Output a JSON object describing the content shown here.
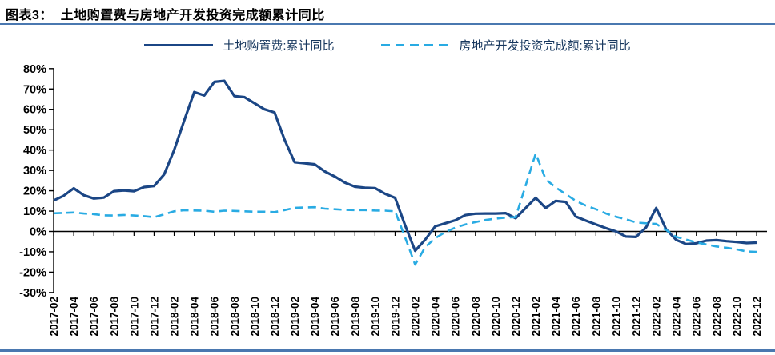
{
  "page": {
    "title": "图表3：  土地购置费与房地产开发投资完成额累计同比",
    "title_rule_color": "#4a78b0",
    "bottom_rule_color": "#4a78b0",
    "background": "#ffffff",
    "axis_color": "#000000"
  },
  "legend": [
    {
      "label": "土地购置费:累计同比",
      "color": "#1b4685",
      "style": "solid"
    },
    {
      "label": "房地产开发投资完成额:累计同比",
      "color": "#29abe3",
      "style": "dashed"
    }
  ],
  "chart_data": {
    "type": "line",
    "title": "土地购置费与房地产开发投资完成额累计同比",
    "xlabel": "",
    "ylabel": "",
    "grid": false,
    "legend_position": "top",
    "ylim": [
      -30,
      80
    ],
    "y_ticks": {
      "values": [
        80,
        70,
        60,
        50,
        40,
        30,
        20,
        10,
        0,
        -10,
        -20,
        -30
      ],
      "labels": [
        "80%",
        "70%",
        "60%",
        "50%",
        "40%",
        "30%",
        "20%",
        "10%",
        "0%",
        "-10%",
        "-20%",
        "-30%"
      ]
    },
    "x": [
      "2017-02",
      "2017-03",
      "2017-04",
      "2017-05",
      "2017-06",
      "2017-07",
      "2017-08",
      "2017-09",
      "2017-10",
      "2017-11",
      "2017-12",
      "2018-01",
      "2018-02",
      "2018-03",
      "2018-04",
      "2018-05",
      "2018-06",
      "2018-07",
      "2018-08",
      "2018-09",
      "2018-10",
      "2018-11",
      "2018-12",
      "2019-01",
      "2019-02",
      "2019-03",
      "2019-04",
      "2019-05",
      "2019-06",
      "2019-07",
      "2019-08",
      "2019-09",
      "2019-10",
      "2019-11",
      "2019-12",
      "2020-01",
      "2020-02",
      "2020-03",
      "2020-04",
      "2020-05",
      "2020-06",
      "2020-07",
      "2020-08",
      "2020-09",
      "2020-10",
      "2020-11",
      "2020-12",
      "2021-01",
      "2021-02",
      "2021-03",
      "2021-04",
      "2021-05",
      "2021-06",
      "2021-07",
      "2021-08",
      "2021-09",
      "2021-10",
      "2021-11",
      "2021-12",
      "2022-01",
      "2022-02",
      "2022-03",
      "2022-04",
      "2022-05",
      "2022-06",
      "2022-07",
      "2022-08",
      "2022-09",
      "2022-10",
      "2022-11",
      "2022-12"
    ],
    "x_tick_every": 2,
    "x_tick_labels": [
      "2017-02",
      "2017-04",
      "2017-06",
      "2017-08",
      "2017-10",
      "2017-12",
      "2018-02",
      "2018-04",
      "2018-06",
      "2018-08",
      "2018-10",
      "2018-12",
      "2019-02",
      "2019-04",
      "2019-06",
      "2019-08",
      "2019-10",
      "2019-12",
      "2020-02",
      "2020-04",
      "2020-06",
      "2020-08",
      "2020-10",
      "2020-12",
      "2021-02",
      "2021-04",
      "2021-06",
      "2021-08",
      "2021-10",
      "2021-12",
      "2022-02",
      "2022-04",
      "2022-06",
      "2022-08",
      "2022-10",
      "2022-12"
    ],
    "series": [
      {
        "name": "土地购置费:累计同比",
        "color": "#1b4685",
        "line_style": "solid",
        "line_width": 3.2,
        "values": [
          15.2,
          17.5,
          21.2,
          17.8,
          16.2,
          16.6,
          19.8,
          20.2,
          19.8,
          21.8,
          22.3,
          28,
          40,
          54.5,
          68.5,
          66.8,
          73.5,
          74,
          66.5,
          66,
          63,
          60,
          58.5,
          45,
          34,
          33.5,
          33,
          29.5,
          27,
          24,
          22,
          21.5,
          21.3,
          18.5,
          16.5,
          3,
          -9.5,
          -4,
          2.5,
          4,
          5.5,
          8,
          8.7,
          8.8,
          8.8,
          9,
          6.5,
          11.5,
          16.5,
          11.5,
          15,
          14.5,
          7.3,
          5.3,
          3.4,
          1.6,
          0,
          -2.5,
          -2.7,
          2,
          11.5,
          1,
          -4.2,
          -6.2,
          -5.8,
          -4.5,
          -4.3,
          -4.8,
          -5.2,
          -5.7,
          -5.5
        ]
      },
      {
        "name": "房地产开发投资完成额:累计同比",
        "color": "#29abe3",
        "line_style": "dashed",
        "line_width": 2.6,
        "values": [
          8.9,
          9.1,
          9.3,
          8.8,
          8.5,
          7.9,
          7.8,
          8.1,
          7.8,
          7.5,
          7.0,
          8.4,
          9.9,
          10.4,
          10.3,
          10.2,
          9.7,
          10.2,
          10.1,
          9.9,
          9.7,
          9.7,
          9.5,
          10.5,
          11.6,
          11.8,
          11.9,
          11.2,
          10.9,
          10.6,
          10.5,
          10.5,
          10.3,
          10.2,
          9.9,
          -3.0,
          -16.3,
          -7.7,
          -3.3,
          -0.3,
          1.9,
          3.4,
          4.6,
          5.6,
          6.3,
          6.8,
          7.0,
          22.5,
          38.3,
          25.6,
          21.6,
          18.3,
          15.0,
          12.7,
          10.9,
          8.8,
          7.2,
          6.0,
          4.4,
          4.0,
          3.7,
          0.7,
          -2.7,
          -4.0,
          -5.4,
          -6.4,
          -7.4,
          -8.0,
          -8.8,
          -9.8,
          -10.0
        ]
      }
    ]
  }
}
